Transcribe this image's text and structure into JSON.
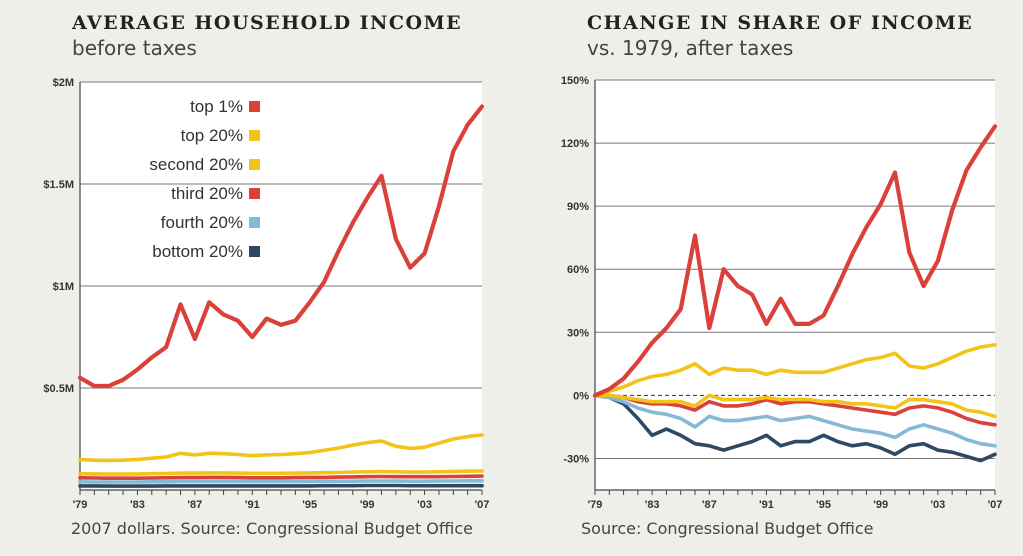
{
  "left": {
    "title": "AVERAGE HOUSEHOLD INCOME",
    "subtitle": "before taxes",
    "source": "2007 dollars. Source: Congressional Budget Office"
  },
  "right": {
    "title": "CHANGE IN SHARE OF INCOME",
    "subtitle": "vs. 1979, after taxes",
    "source": "Source: Congressional Budget Office"
  },
  "colors": {
    "red": "#d9413a",
    "yellow": "#f4c319",
    "blue": "#86b9d6",
    "navy": "#2e4a63",
    "grid": "#777777",
    "plot_bg": "#ffffff",
    "page_bg": "#efefea"
  },
  "chart_data": [
    {
      "type": "line",
      "title": "AVERAGE HOUSEHOLD INCOME",
      "ylim": [
        0,
        2000000
      ],
      "yticks": [
        500000,
        1000000,
        1500000,
        2000000
      ],
      "ytick_labels": [
        "$0.5M",
        "$1M",
        "$1.5M",
        "$2M"
      ],
      "xlim": [
        1979,
        2007
      ],
      "xticks": [
        1979,
        1983,
        1987,
        1991,
        1995,
        1999,
        2003,
        2007
      ],
      "xtick_labels": [
        "'79",
        "'83",
        "'87",
        "'91",
        "'95",
        "'99",
        "'03",
        "'07"
      ],
      "grid": true,
      "legend": "top-left",
      "legend_entries": [
        "top 1%",
        "top 20%",
        "second 20%",
        "third 20%",
        "fourth 20%",
        "bottom 20%"
      ],
      "x": [
        1979,
        1980,
        1981,
        1982,
        1983,
        1984,
        1985,
        1986,
        1987,
        1988,
        1989,
        1990,
        1991,
        1992,
        1993,
        1994,
        1995,
        1996,
        1997,
        1998,
        1999,
        2000,
        2001,
        2002,
        2003,
        2004,
        2005,
        2006,
        2007
      ],
      "series": [
        {
          "name": "top 1%",
          "color": "red",
          "values": [
            550000,
            510000,
            510000,
            540000,
            590000,
            650000,
            700000,
            910000,
            740000,
            920000,
            860000,
            830000,
            750000,
            840000,
            810000,
            830000,
            920000,
            1020000,
            1170000,
            1310000,
            1430000,
            1540000,
            1230000,
            1090000,
            1160000,
            1390000,
            1660000,
            1790000,
            1880000
          ]
        },
        {
          "name": "top 20%",
          "color": "yellow",
          "values": [
            150000,
            146000,
            145000,
            146000,
            150000,
            156000,
            162000,
            180000,
            172000,
            180000,
            178000,
            174000,
            168000,
            172000,
            174000,
            178000,
            184000,
            194000,
            206000,
            220000,
            232000,
            240000,
            214000,
            204000,
            210000,
            230000,
            250000,
            262000,
            270000
          ]
        },
        {
          "name": "second 20%",
          "color": "yellow",
          "values": [
            80000,
            79000,
            78000,
            78000,
            79000,
            80000,
            81000,
            83000,
            83000,
            84000,
            84000,
            83000,
            82000,
            82000,
            82000,
            83000,
            84000,
            85000,
            86000,
            88000,
            89000,
            90000,
            89000,
            88000,
            88000,
            89000,
            91000,
            92000,
            93000
          ]
        },
        {
          "name": "third 20%",
          "color": "red",
          "values": [
            60000,
            59000,
            58000,
            58000,
            58000,
            59000,
            60000,
            61000,
            61000,
            62000,
            62000,
            61000,
            60000,
            60000,
            60000,
            61000,
            62000,
            62000,
            63000,
            64000,
            65000,
            66000,
            65000,
            65000,
            65000,
            65000,
            66000,
            67000,
            68000
          ]
        },
        {
          "name": "fourth 20%",
          "color": "blue",
          "values": [
            40000,
            39000,
            39000,
            39000,
            39000,
            40000,
            40000,
            41000,
            41000,
            41000,
            42000,
            41000,
            41000,
            41000,
            41000,
            41000,
            42000,
            42000,
            43000,
            43000,
            44000,
            44000,
            44000,
            43000,
            43000,
            44000,
            44000,
            45000,
            45000
          ]
        },
        {
          "name": "bottom 20%",
          "color": "navy",
          "values": [
            20000,
            20000,
            19000,
            19000,
            19000,
            19000,
            20000,
            20000,
            20000,
            20000,
            20000,
            20000,
            20000,
            20000,
            20000,
            20000,
            20000,
            21000,
            21000,
            21000,
            22000,
            22000,
            22000,
            21000,
            21000,
            21000,
            21000,
            21000,
            21000
          ]
        }
      ]
    },
    {
      "type": "line",
      "title": "CHANGE IN SHARE OF INCOME",
      "ylim": [
        -45,
        150
      ],
      "yticks": [
        -30,
        0,
        30,
        60,
        90,
        120,
        150
      ],
      "ytick_labels": [
        "-30%",
        "0%",
        "30%",
        "60%",
        "90%",
        "120%",
        "150%"
      ],
      "xlim": [
        1979,
        2007
      ],
      "xticks": [
        1979,
        1983,
        1987,
        1991,
        1995,
        1999,
        2003,
        2007
      ],
      "xtick_labels": [
        "'79",
        "'83",
        "'87",
        "'91",
        "'95",
        "'99",
        "'03",
        "'07"
      ],
      "grid": true,
      "zero_line": "dashed",
      "x": [
        1979,
        1980,
        1981,
        1982,
        1983,
        1984,
        1985,
        1986,
        1987,
        1988,
        1989,
        1990,
        1991,
        1992,
        1993,
        1994,
        1995,
        1996,
        1997,
        1998,
        1999,
        2000,
        2001,
        2002,
        2003,
        2004,
        2005,
        2006,
        2007
      ],
      "series": [
        {
          "color": "red",
          "values": [
            0,
            3,
            8,
            16,
            25,
            32,
            41,
            76,
            32,
            60,
            52,
            48,
            34,
            46,
            34,
            34,
            38,
            52,
            67,
            80,
            91,
            106,
            68,
            52,
            64,
            88,
            107,
            118,
            128
          ]
        },
        {
          "color": "yellow",
          "values": [
            0,
            2,
            4,
            7,
            9,
            10,
            12,
            15,
            10,
            13,
            12,
            12,
            10,
            12,
            11,
            11,
            11,
            13,
            15,
            17,
            18,
            20,
            14,
            13,
            15,
            18,
            21,
            23,
            24
          ]
        },
        {
          "color": "yellow",
          "values": [
            0,
            0,
            -1,
            -2,
            -3,
            -3,
            -3,
            -5,
            0,
            -2,
            -2,
            -2,
            -1,
            -2,
            -2,
            -2,
            -3,
            -3,
            -4,
            -4,
            -5,
            -6,
            -2,
            -2,
            -3,
            -4,
            -7,
            -8,
            -10
          ]
        },
        {
          "color": "red",
          "values": [
            0,
            0,
            -1,
            -3,
            -4,
            -4,
            -5,
            -7,
            -3,
            -5,
            -5,
            -4,
            -2,
            -4,
            -3,
            -3,
            -4,
            -5,
            -6,
            -7,
            -8,
            -9,
            -6,
            -5,
            -6,
            -8,
            -11,
            -13,
            -14
          ]
        },
        {
          "color": "blue",
          "values": [
            0,
            -1,
            -3,
            -6,
            -8,
            -9,
            -11,
            -15,
            -10,
            -12,
            -12,
            -11,
            -10,
            -12,
            -11,
            -10,
            -12,
            -14,
            -16,
            -17,
            -18,
            -20,
            -16,
            -14,
            -16,
            -18,
            -21,
            -23,
            -24
          ]
        },
        {
          "color": "navy",
          "values": [
            0,
            -1,
            -4,
            -11,
            -19,
            -16,
            -19,
            -23,
            -24,
            -26,
            -24,
            -22,
            -19,
            -24,
            -22,
            -22,
            -19,
            -22,
            -24,
            -23,
            -25,
            -28,
            -24,
            -23,
            -26,
            -27,
            -29,
            -31,
            -28
          ]
        }
      ]
    }
  ]
}
